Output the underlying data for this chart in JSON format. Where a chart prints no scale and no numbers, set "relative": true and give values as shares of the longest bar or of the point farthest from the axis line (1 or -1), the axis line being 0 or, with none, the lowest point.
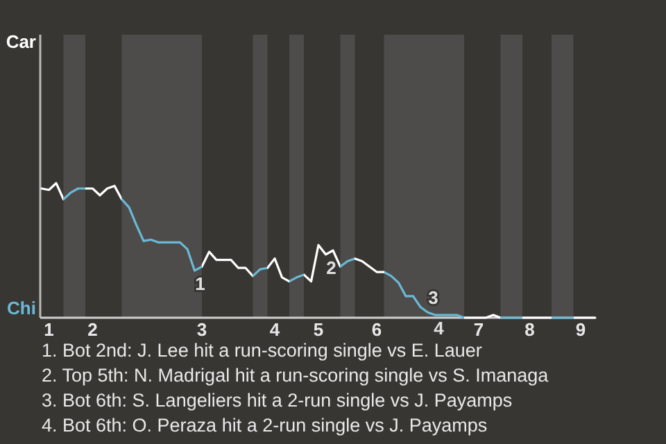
{
  "chart_data": {
    "type": "line",
    "relative": true,
    "categories": [
      null,
      "1",
      null,
      null,
      null,
      null,
      null,
      "2",
      null,
      null,
      null,
      null,
      null,
      null,
      null,
      null,
      null,
      null,
      null,
      null,
      null,
      null,
      "3",
      null,
      null,
      null,
      null,
      null,
      null,
      null,
      null,
      null,
      "4",
      null,
      null,
      null,
      null,
      null,
      "5",
      null,
      null,
      null,
      null,
      null,
      null,
      null,
      "6",
      null,
      null,
      null,
      null,
      null,
      null,
      null,
      null,
      null,
      null,
      null,
      null,
      null,
      "7",
      null,
      null,
      null,
      null,
      null,
      null,
      "8",
      null,
      null,
      null,
      null,
      null,
      null,
      "9",
      null,
      null
    ],
    "series": [
      {
        "color": "#ffffff",
        "values": [
          0.96,
          0.95,
          1,
          0.88,
          0.93,
          0.96,
          0.96,
          0.96,
          0.91,
          0.96,
          0.98,
          0.88,
          0.82,
          0.69,
          0.57,
          0.58,
          0.56,
          0.56,
          0.56,
          0.56,
          0.51,
          0.35,
          0.38,
          0.49,
          0.43,
          0.43,
          0.43,
          0.37,
          0.37,
          0.31,
          0.36,
          0.37,
          0.44,
          0.3,
          0.27,
          0.3,
          0.32,
          0.27,
          0.54,
          0.47,
          0.5,
          0.38,
          0.42,
          0.44,
          0.42,
          0.38,
          0.34,
          0.34,
          0.31,
          0.26,
          0.16,
          0.16,
          0.08,
          0.04,
          0.02,
          0.02,
          0.02,
          0.02,
          0,
          0,
          0,
          0,
          0.02,
          0,
          0,
          0,
          0,
          0,
          0,
          0,
          0,
          0,
          0,
          0,
          0,
          0,
          0
        ],
        "colors": [
          "#ffffff",
          "#ffffff",
          "#ffffff",
          "#ffffff",
          "#6ab9d6",
          "#6ab9d6",
          "#6ab9d6",
          "#ffffff",
          "#ffffff",
          "#ffffff",
          "#ffffff",
          "#ffffff",
          "#6ab9d6",
          "#6ab9d6",
          "#6ab9d6",
          "#6ab9d6",
          "#6ab9d6",
          "#6ab9d6",
          "#6ab9d6",
          "#6ab9d6",
          "#6ab9d6",
          "#6ab9d6",
          "#6ab9d6",
          "#ffffff",
          "#ffffff",
          "#ffffff",
          "#ffffff",
          "#ffffff",
          "#ffffff",
          "#ffffff",
          "#6ab9d6",
          "#6ab9d6",
          "#ffffff",
          "#ffffff",
          "#ffffff",
          "#6ab9d6",
          "#6ab9d6",
          "#ffffff",
          "#ffffff",
          "#ffffff",
          "#ffffff",
          "#ffffff",
          "#6ab9d6",
          "#6ab9d6",
          "#ffffff",
          "#ffffff",
          "#ffffff",
          "#ffffff",
          "#6ab9d6",
          "#6ab9d6",
          "#6ab9d6",
          "#6ab9d6",
          "#6ab9d6",
          "#6ab9d6",
          "#6ab9d6",
          "#6ab9d6",
          "#6ab9d6",
          "#6ab9d6",
          "#6ab9d6",
          "#ffffff",
          "#ffffff",
          "#ffffff",
          "#ffffff",
          "#ffffff",
          "#6ab9d6",
          "#6ab9d6",
          "#6ab9d6",
          "#ffffff",
          "#ffffff",
          "#ffffff",
          "#ffffff",
          "#6ab9d6",
          "#6ab9d6",
          "#6ab9d6",
          "#ffffff",
          "#ffffff",
          "#ffffff"
        ]
      }
    ],
    "annotations": [
      "Car",
      "Chi",
      {
        "text": "1",
        "y": 0.35
      },
      {
        "text": "2",
        "y": 0.47
      },
      {
        "text": "3",
        "y": 0.04
      },
      {
        "text": "4",
        "y": 0.02
      },
      "1. Bot 2nd: J. Lee hit a run-scoring single vs E. Lauer",
      "2. Top 5th: N. Madrigal hit a run-scoring single vs S. Imanaga",
      "3. Bot 6th: S. Langeliers hit a 2-run single vs J. Payamps",
      "4. Bot 6th: O. Peraza hit a 2-run single vs J. Payamps"
    ]
  }
}
